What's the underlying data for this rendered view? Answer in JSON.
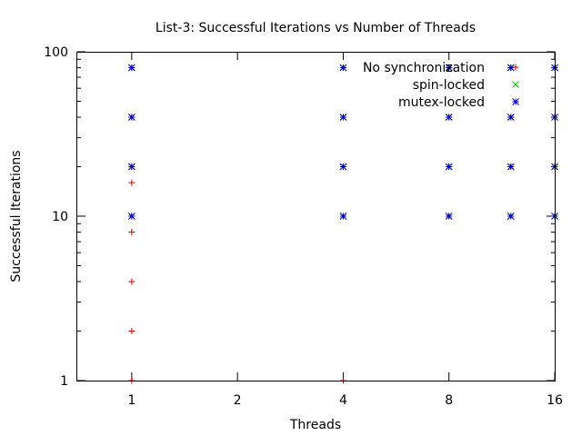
{
  "chart_data": {
    "type": "scatter",
    "title": "List-3: Successful Iterations vs Number of Threads",
    "xlabel": "Threads",
    "ylabel": "Successful Iterations",
    "xscale": "log2",
    "yscale": "log10",
    "xlim": [
      0.7,
      16
    ],
    "ylim": [
      1,
      100
    ],
    "xticks": [
      1,
      2,
      4,
      8,
      16
    ],
    "yticks": [
      1,
      10,
      100
    ],
    "grid": false,
    "legend_position": "top-right",
    "series": [
      {
        "name": "No synchronization",
        "marker": "plus",
        "color": "#cc0000",
        "points": [
          [
            1,
            1
          ],
          [
            1,
            2
          ],
          [
            1,
            4
          ],
          [
            1,
            8
          ],
          [
            1,
            16
          ],
          [
            1,
            10
          ],
          [
            1,
            20
          ],
          [
            1,
            40
          ],
          [
            1,
            80
          ],
          [
            4,
            1
          ],
          [
            4,
            10
          ],
          [
            4,
            20
          ],
          [
            4,
            40
          ],
          [
            4,
            80
          ],
          [
            8,
            10
          ],
          [
            8,
            20
          ],
          [
            8,
            40
          ],
          [
            8,
            80
          ],
          [
            12,
            10
          ],
          [
            12,
            20
          ],
          [
            12,
            40
          ],
          [
            12,
            80
          ],
          [
            16,
            10
          ],
          [
            16,
            20
          ],
          [
            16,
            40
          ],
          [
            16,
            80
          ]
        ]
      },
      {
        "name": "spin-locked",
        "marker": "cross",
        "color": "#00cc00",
        "points": [
          [
            1,
            10
          ],
          [
            1,
            20
          ],
          [
            1,
            40
          ],
          [
            1,
            80
          ],
          [
            4,
            10
          ],
          [
            4,
            20
          ],
          [
            4,
            40
          ],
          [
            4,
            80
          ],
          [
            8,
            10
          ],
          [
            8,
            20
          ],
          [
            8,
            40
          ],
          [
            8,
            80
          ],
          [
            12,
            10
          ],
          [
            12,
            20
          ],
          [
            12,
            40
          ],
          [
            12,
            80
          ],
          [
            16,
            10
          ],
          [
            16,
            20
          ],
          [
            16,
            40
          ],
          [
            16,
            80
          ]
        ]
      },
      {
        "name": "mutex-locked",
        "marker": "asterisk",
        "color": "#0000cc",
        "points": [
          [
            1,
            10
          ],
          [
            1,
            20
          ],
          [
            1,
            40
          ],
          [
            1,
            80
          ],
          [
            4,
            10
          ],
          [
            4,
            20
          ],
          [
            4,
            40
          ],
          [
            4,
            80
          ],
          [
            8,
            10
          ],
          [
            8,
            20
          ],
          [
            8,
            40
          ],
          [
            8,
            80
          ],
          [
            12,
            10
          ],
          [
            12,
            20
          ],
          [
            12,
            40
          ],
          [
            12,
            80
          ],
          [
            16,
            10
          ],
          [
            16,
            20
          ],
          [
            16,
            40
          ],
          [
            16,
            80
          ]
        ]
      }
    ]
  }
}
